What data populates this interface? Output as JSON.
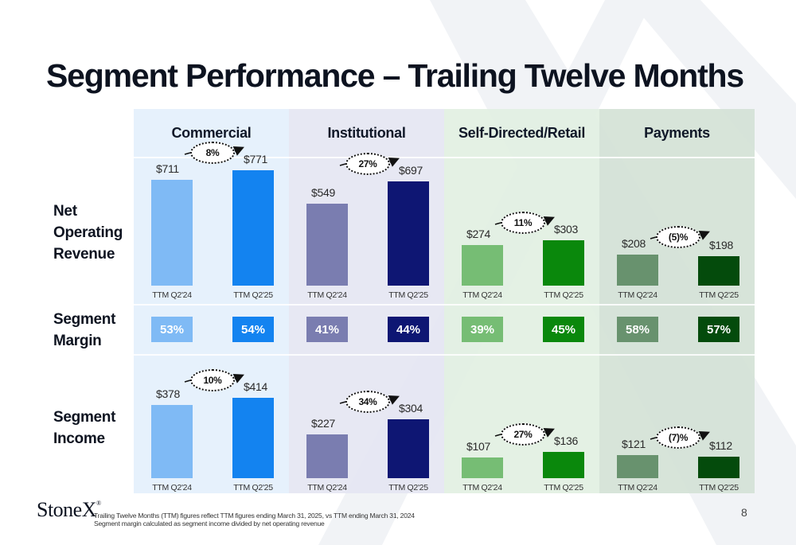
{
  "title": "Segment Performance – Trailing Twelve Months",
  "row_labels": {
    "net_operating_revenue": [
      "Net",
      "Operating",
      "Revenue"
    ],
    "segment_margin": [
      "Segment",
      "Margin"
    ],
    "segment_income": [
      "Segment",
      "Income"
    ]
  },
  "colors": {
    "commercial": {
      "bg": "#e4f0fc",
      "prior": "#7fbaf5",
      "current": "#1383f0"
    },
    "institutional": {
      "bg": "#e5e6f2",
      "prior": "#7a7db0",
      "current": "#0e1673"
    },
    "self_directed": {
      "bg": "#e2f0e2",
      "prior": "#76bd74",
      "current": "#0a880c"
    },
    "payments": {
      "bg": "#d4e2d6",
      "prior": "#68926e",
      "current": "#044b0c"
    }
  },
  "chart_data": {
    "type": "bar",
    "title": "Segment Performance – Trailing Twelve Months",
    "categories": [
      "TTM Q2'24",
      "TTM Q2'25"
    ],
    "units": "$M",
    "segments": [
      {
        "key": "commercial",
        "name": "Commercial",
        "net_operating_revenue": {
          "values": [
            711,
            771
          ],
          "labels": [
            "$711",
            "$771"
          ],
          "change": "8%"
        },
        "segment_margin": {
          "values": [
            53,
            54
          ],
          "labels": [
            "53%",
            "54%"
          ]
        },
        "segment_income": {
          "values": [
            378,
            414
          ],
          "labels": [
            "$378",
            "$414"
          ],
          "change": "10%"
        }
      },
      {
        "key": "institutional",
        "name": "Institutional",
        "net_operating_revenue": {
          "values": [
            549,
            697
          ],
          "labels": [
            "$549",
            "$697"
          ],
          "change": "27%"
        },
        "segment_margin": {
          "values": [
            41,
            44
          ],
          "labels": [
            "41%",
            "44%"
          ]
        },
        "segment_income": {
          "values": [
            227,
            304
          ],
          "labels": [
            "$227",
            "$304"
          ],
          "change": "34%"
        }
      },
      {
        "key": "self_directed",
        "name": "Self-Directed/Retail",
        "net_operating_revenue": {
          "values": [
            274,
            303
          ],
          "labels": [
            "$274",
            "$303"
          ],
          "change": "11%"
        },
        "segment_margin": {
          "values": [
            39,
            45
          ],
          "labels": [
            "39%",
            "45%"
          ]
        },
        "segment_income": {
          "values": [
            107,
            136
          ],
          "labels": [
            "$107",
            "$136"
          ],
          "change": "27%"
        }
      },
      {
        "key": "payments",
        "name": "Payments",
        "net_operating_revenue": {
          "values": [
            208,
            198
          ],
          "labels": [
            "$208",
            "$198"
          ],
          "change": "(5)%"
        },
        "segment_margin": {
          "values": [
            58,
            57
          ],
          "labels": [
            "58%",
            "57%"
          ]
        },
        "segment_income": {
          "values": [
            121,
            112
          ],
          "labels": [
            "$121",
            "$112"
          ],
          "change": "(7)%"
        }
      }
    ]
  },
  "footer": {
    "logo": "StoneX",
    "logo_mark": "®",
    "notes": [
      "Trailing Twelve Months (TTM) figures reflect TTM figures ending March 31, 2025, vs TTM ending March 31, 2024",
      "Segment margin calculated as segment income divided by net operating revenue"
    ],
    "page_number": "8"
  }
}
